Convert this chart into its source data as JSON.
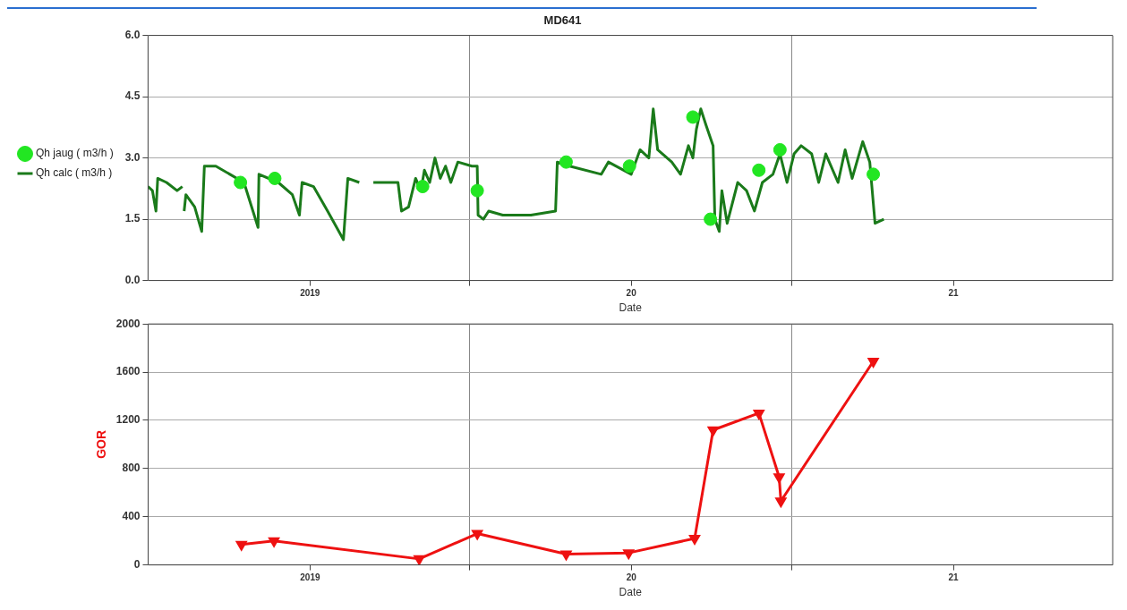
{
  "chart_data": [
    {
      "type": "line",
      "title": "MD641",
      "xlabel": "Date",
      "legend": "left",
      "grid": true,
      "xlim": [
        "2018-07-01",
        "2021-07-01"
      ],
      "xticks": [
        {
          "value": "2019-01-01",
          "label": "2019"
        },
        {
          "value": "2019-07-01",
          "label": null
        },
        {
          "value": "2020-01-01",
          "label": "20"
        },
        {
          "value": "2020-07-01",
          "label": null
        },
        {
          "value": "2021-01-01",
          "label": "21"
        }
      ],
      "ylim": [
        0,
        6
      ],
      "yticks": [
        {
          "value": 0,
          "label": "0.0"
        },
        {
          "value": 1.5,
          "label": "1.5"
        },
        {
          "value": 3,
          "label": "3.0"
        },
        {
          "value": 4.5,
          "label": "4.5"
        },
        {
          "value": 6,
          "label": "6.0"
        }
      ],
      "series": [
        {
          "name": "Qh jaug ( m3/h )",
          "type": "scatter",
          "marker": "circle",
          "color": "#22e622",
          "x": [
            "2018-10-14",
            "2018-11-22",
            "2019-05-09",
            "2019-07-10",
            "2019-10-19",
            "2019-12-30",
            "2020-03-11",
            "2020-03-31",
            "2020-05-25",
            "2020-06-18",
            "2020-10-02"
          ],
          "values": [
            2.4,
            2.5,
            2.3,
            2.2,
            2.9,
            2.8,
            4.0,
            1.5,
            2.7,
            3.2,
            2.6
          ]
        },
        {
          "name": "Qh calc ( m3/h )",
          "marker": "none",
          "color": "#1a7a1a",
          "x": [
            "2018-07-01",
            "2018-07-06",
            "2018-07-10",
            "2018-07-12",
            "2018-07-22",
            "2018-08-03",
            "2018-08-09",
            "2018-08-10",
            "2018-08-11",
            "2018-08-13",
            "2018-08-23",
            "2018-08-31",
            "2018-09-03",
            "2018-09-16",
            "2018-10-02",
            "2018-10-18",
            "2018-11-03",
            "2018-11-04",
            "2018-11-26",
            "2018-12-12",
            "2018-12-20",
            "2018-12-23",
            "2019-01-05",
            "2019-01-21",
            "2019-02-08",
            "2019-02-13",
            "2019-02-26",
            "2019-03-05",
            "2019-03-14",
            "2019-04-11",
            "2019-04-15",
            "2019-04-23",
            "2019-05-01",
            "2019-05-07",
            "2019-05-11",
            "2019-05-17",
            "2019-05-23",
            "2019-05-29",
            "2019-06-04",
            "2019-06-10",
            "2019-06-18",
            "2019-07-04",
            "2019-07-10",
            "2019-07-11",
            "2019-07-17",
            "2019-07-23",
            "2019-08-08",
            "2019-09-09",
            "2019-10-07",
            "2019-10-09",
            "2019-10-23",
            "2019-11-28",
            "2019-12-06",
            "2020-01-01",
            "2020-01-11",
            "2020-01-21",
            "2020-01-26",
            "2020-01-31",
            "2020-02-16",
            "2020-02-26",
            "2020-03-06",
            "2020-03-11",
            "2020-03-15",
            "2020-03-20",
            "2020-03-26",
            "2020-04-03",
            "2020-04-05",
            "2020-04-10",
            "2020-04-13",
            "2020-04-19",
            "2020-05-01",
            "2020-05-11",
            "2020-05-20",
            "2020-05-29",
            "2020-06-10",
            "2020-06-18",
            "2020-06-26",
            "2020-07-04",
            "2020-07-12",
            "2020-07-24",
            "2020-08-01",
            "2020-08-09",
            "2020-08-23",
            "2020-08-31",
            "2020-09-08",
            "2020-09-20",
            "2020-09-28",
            "2020-10-04",
            "2020-10-14"
          ],
          "values": [
            2.3,
            2.2,
            1.7,
            2.5,
            2.4,
            2.2,
            2.3,
            null,
            1.7,
            2.1,
            1.8,
            1.2,
            2.8,
            2.8,
            2.6,
            2.4,
            1.3,
            2.6,
            2.4,
            2.1,
            1.6,
            2.4,
            2.3,
            1.7,
            1.0,
            2.5,
            2.4,
            null,
            2.4,
            2.4,
            1.7,
            1.8,
            2.5,
            2.2,
            2.7,
            2.4,
            3.0,
            2.5,
            2.8,
            2.4,
            2.9,
            2.8,
            2.8,
            1.6,
            1.5,
            1.7,
            1.6,
            1.6,
            1.7,
            2.9,
            2.8,
            2.6,
            2.9,
            2.6,
            3.2,
            3.0,
            4.2,
            3.2,
            2.9,
            2.6,
            3.3,
            3.0,
            3.7,
            4.2,
            3.8,
            3.3,
            1.5,
            1.2,
            2.2,
            1.4,
            2.4,
            2.2,
            1.7,
            2.4,
            2.6,
            3.1,
            2.4,
            3.1,
            3.3,
            3.1,
            2.4,
            3.1,
            2.4,
            3.2,
            2.5,
            3.4,
            2.9,
            1.4,
            1.5
          ]
        }
      ]
    },
    {
      "type": "line",
      "xlabel": "Date",
      "ylabel": "GOR",
      "grid": true,
      "xlim": [
        "2018-07-01",
        "2021-07-01"
      ],
      "xticks": [
        {
          "value": "2019-01-01",
          "label": "2019"
        },
        {
          "value": "2019-07-01",
          "label": null
        },
        {
          "value": "2020-01-01",
          "label": "20"
        },
        {
          "value": "2020-07-01",
          "label": null
        },
        {
          "value": "2021-01-01",
          "label": "21"
        }
      ],
      "ylim": [
        0,
        2000
      ],
      "yticks": [
        0,
        400,
        800,
        1200,
        1600,
        2000
      ],
      "series": [
        {
          "marker": "triangle",
          "color": "#ee1111",
          "x": [
            "2018-10-15",
            "2018-11-21",
            "2019-05-05",
            "2019-07-10",
            "2019-10-19",
            "2019-12-29",
            "2020-03-13",
            "2020-04-03",
            "2020-05-25",
            "2020-06-17",
            "2020-06-19",
            "2020-10-02"
          ],
          "values": [
            170,
            200,
            50,
            260,
            90,
            100,
            220,
            1120,
            1260,
            730,
            530,
            1690
          ]
        }
      ]
    }
  ]
}
